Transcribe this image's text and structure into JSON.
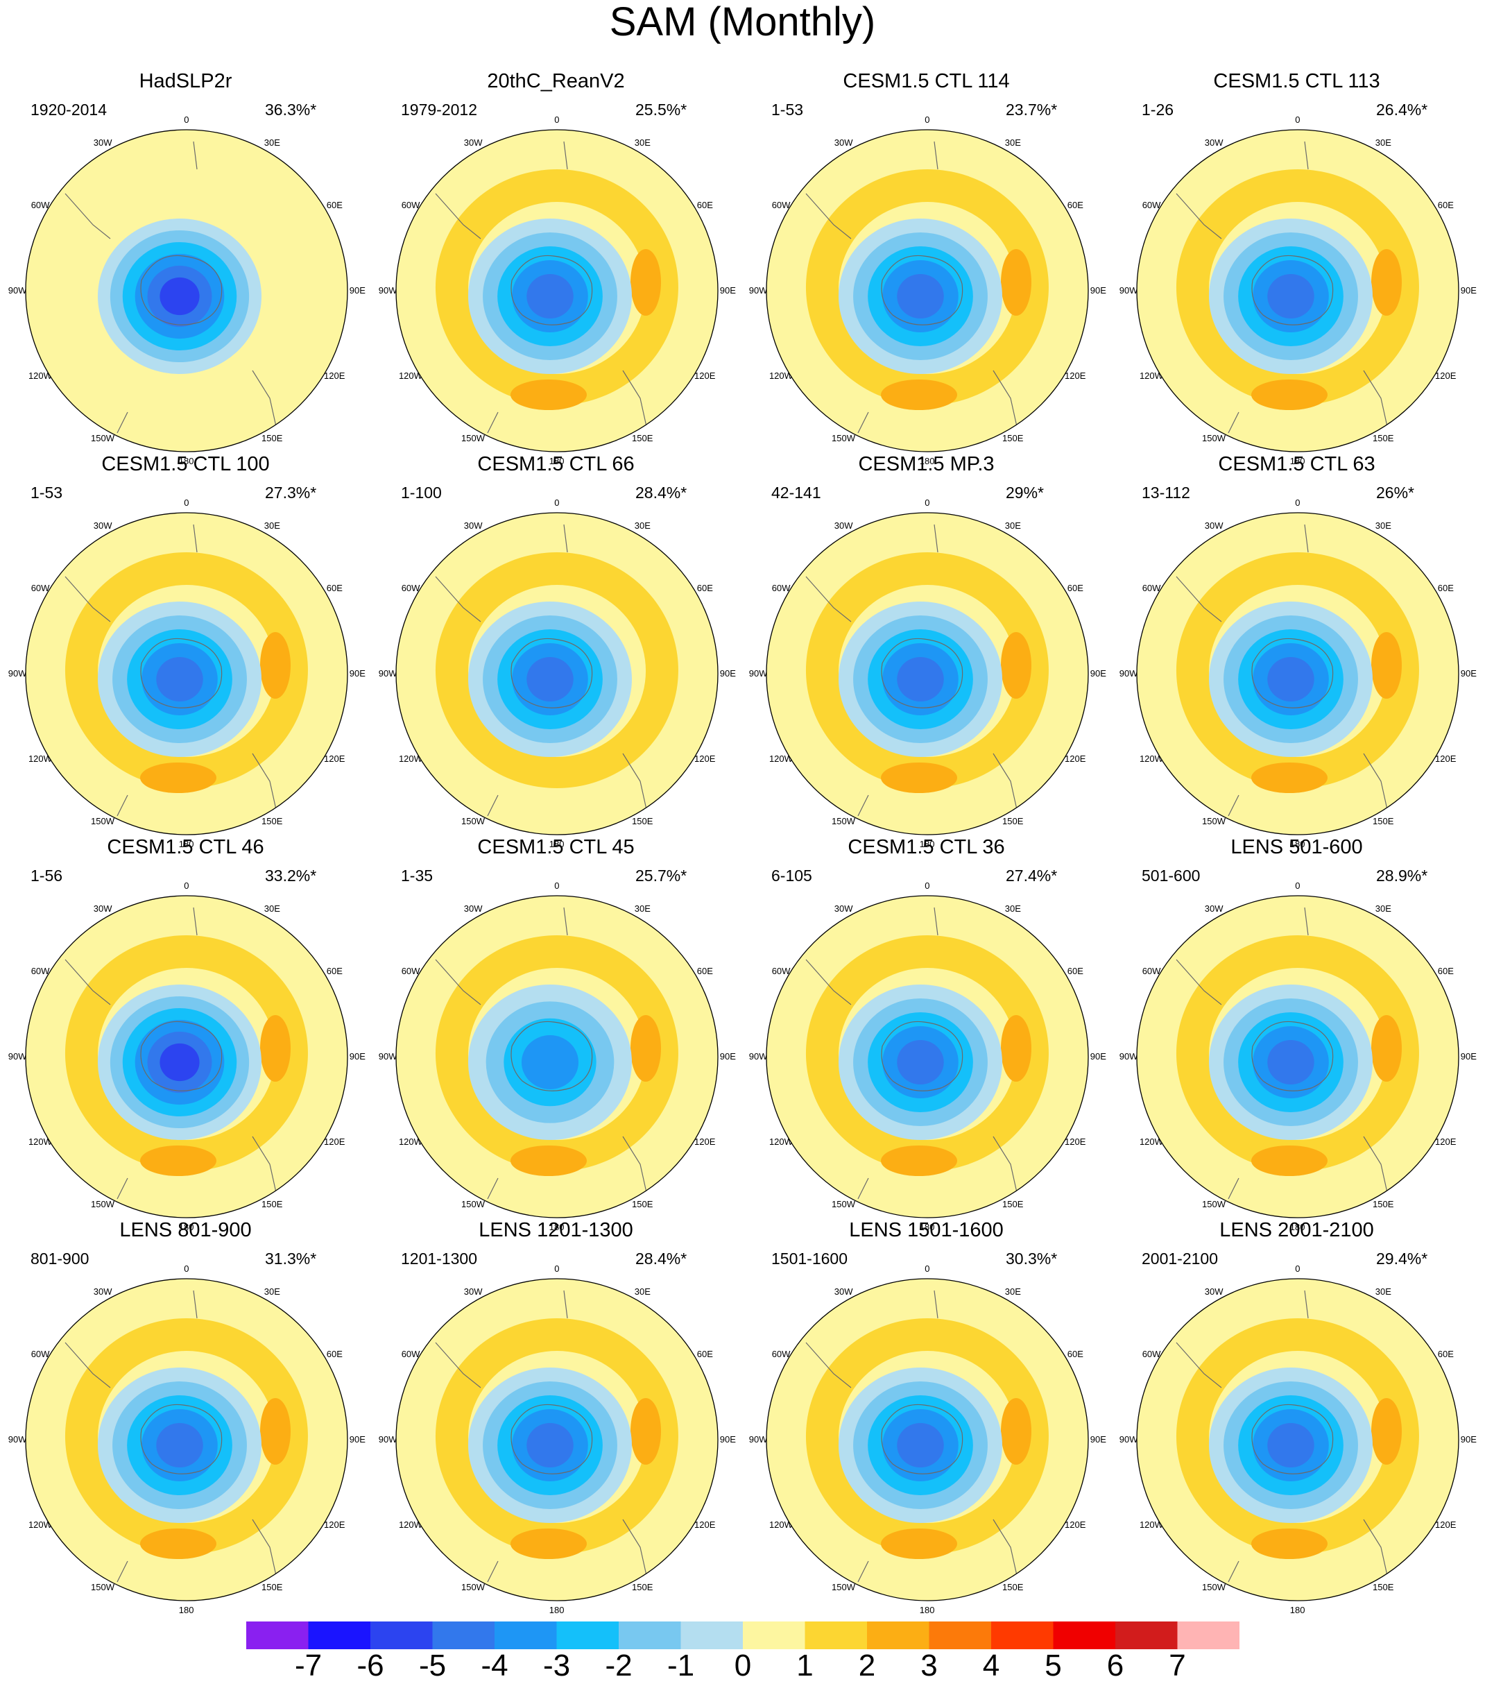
{
  "chart_data": {
    "type": "polar-contour-map-grid",
    "title": "SAM (Monthly)",
    "projection": "south-polar stereographic",
    "longitude_labels": [
      "0",
      "30E",
      "60E",
      "90E",
      "120E",
      "150E",
      "180",
      "150W",
      "120W",
      "90W",
      "60W",
      "30W"
    ],
    "colorbar": {
      "ticks": [
        "-7",
        "-6",
        "-5",
        "-4",
        "-3",
        "-2",
        "-1",
        "0",
        "1",
        "2",
        "3",
        "4",
        "5",
        "6",
        "7"
      ],
      "colors": [
        "#8a20f0",
        "#1a14ff",
        "#2c44f0",
        "#3278ec",
        "#1e96f5",
        "#14c0fa",
        "#78c8f0",
        "#b4def0",
        "#fdf6a0",
        "#fcd632",
        "#fcae14",
        "#fc7a0a",
        "#ff3a00",
        "#f00000",
        "#d21c1c",
        "#ffb4b4"
      ]
    },
    "panels": [
      {
        "title": "HadSLP2r",
        "years": "1920-2014",
        "variance": "36.3%*",
        "min": -6,
        "max": 1
      },
      {
        "title": "20thC_ReanV2",
        "years": "1979-2012",
        "variance": "25.5%*",
        "min": -5,
        "max": 3
      },
      {
        "title": "CESM1.5 CTL 114",
        "years": "1-53",
        "variance": "23.7%*",
        "min": -5,
        "max": 3
      },
      {
        "title": "CESM1.5 CTL 113",
        "years": "1-26",
        "variance": "26.4%*",
        "min": -5,
        "max": 3
      },
      {
        "title": "CESM1.5 CTL 100",
        "years": "1-53",
        "variance": "27.3%*",
        "min": -5,
        "max": 3
      },
      {
        "title": "CESM1.5 CTL 66",
        "years": "1-100",
        "variance": "28.4%*",
        "min": -5,
        "max": 2
      },
      {
        "title": "CESM1.5 MP.3",
        "years": "42-141",
        "variance": "29%*",
        "min": -5,
        "max": 3
      },
      {
        "title": "CESM1.5 CTL 63",
        "years": "13-112",
        "variance": "26%*",
        "min": -5,
        "max": 3
      },
      {
        "title": "CESM1.5 CTL 46",
        "years": "1-56",
        "variance": "33.2%*",
        "min": -6,
        "max": 3
      },
      {
        "title": "CESM1.5 CTL 45",
        "years": "1-35",
        "variance": "25.7%*",
        "min": -4,
        "max": 3
      },
      {
        "title": "CESM1.5 CTL 36",
        "years": "6-105",
        "variance": "27.4%*",
        "min": -5,
        "max": 3
      },
      {
        "title": "LENS 501-600",
        "years": "501-600",
        "variance": "28.9%*",
        "min": -5,
        "max": 3
      },
      {
        "title": "LENS 801-900",
        "years": "801-900",
        "variance": "31.3%*",
        "min": -5,
        "max": 3
      },
      {
        "title": "LENS 1201-1300",
        "years": "1201-1300",
        "variance": "28.4%*",
        "min": -5,
        "max": 3
      },
      {
        "title": "LENS 1501-1600",
        "years": "1501-1600",
        "variance": "30.3%*",
        "min": -5,
        "max": 3
      },
      {
        "title": "LENS 2001-2100",
        "years": "2001-2100",
        "variance": "29.4%*",
        "min": -5,
        "max": 3
      }
    ]
  }
}
